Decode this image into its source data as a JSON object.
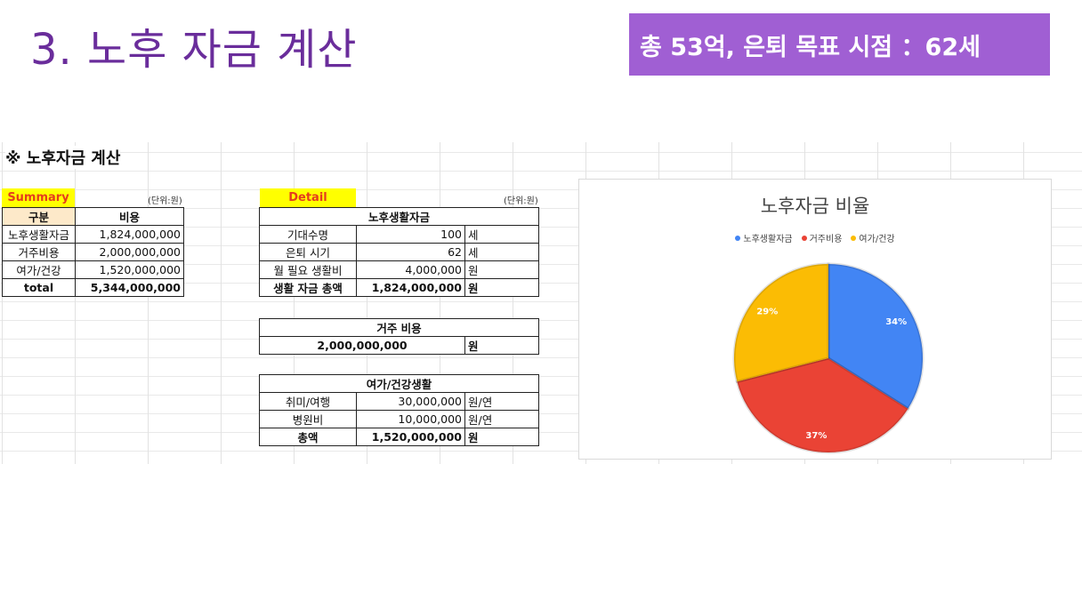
{
  "slide": {
    "title": "3. 노후 자금 계산",
    "banner": "총 53억, 은퇴 목표 시점 ：62세"
  },
  "sheet": {
    "title": "※ 노후자금 계산",
    "summary": {
      "label": "Summary",
      "unit": "(단위:원)",
      "header": [
        "구분",
        "비용"
      ],
      "rows": [
        [
          "노후생활자금",
          "1,824,000,000"
        ],
        [
          "거주비용",
          "2,000,000,000"
        ],
        [
          "여가/건강",
          "1,520,000,000"
        ]
      ],
      "total": [
        "total",
        "5,344,000,000"
      ]
    },
    "detail": {
      "label": "Detail",
      "unit": "(단위:원)",
      "living": {
        "title": "노후생활자금",
        "rows": [
          [
            "기대수명",
            "100",
            "세"
          ],
          [
            "은퇴 시기",
            "62",
            "세"
          ],
          [
            "월 필요 생활비",
            "4,000,000",
            "원"
          ]
        ],
        "total": [
          "생활 자금 총액",
          "1,824,000,000",
          "원"
        ]
      },
      "housing": {
        "title": "거주 비용",
        "value": "2,000,000,000",
        "unit": "원"
      },
      "leisure": {
        "title": "여가/건강생활",
        "rows": [
          [
            "취미/여행",
            "30,000,000",
            "원/연"
          ],
          [
            "병원비",
            "10,000,000",
            "원/연"
          ]
        ],
        "total": [
          "총액",
          "1,520,000,000",
          "원"
        ]
      }
    }
  },
  "chart_data": {
    "type": "pie",
    "title": "노후자금 비율",
    "categories": [
      "노후생활자금",
      "거주비용",
      "여가/건강"
    ],
    "values": [
      34,
      37,
      29
    ],
    "labels": [
      "34%",
      "37%",
      "29%"
    ],
    "colors": [
      "#4285f4",
      "#ea4335",
      "#fbbc04"
    ],
    "legend_position": "top"
  }
}
